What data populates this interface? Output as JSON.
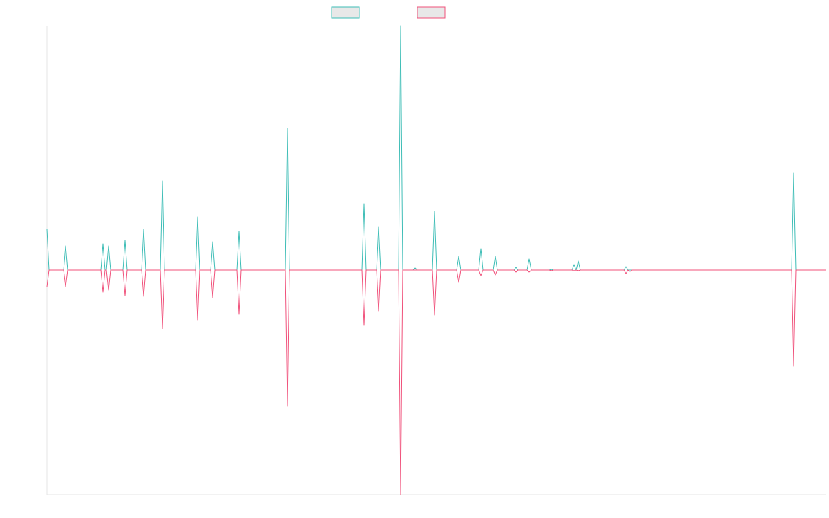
{
  "chart_data": {
    "type": "line",
    "x": [
      0,
      3,
      24,
      27,
      30,
      78,
      81,
      84,
      86,
      89,
      92,
      110,
      113,
      116,
      137,
      140,
      143,
      164,
      167,
      170,
      215,
      218,
      221,
      237,
      240,
      243,
      275,
      278,
      281,
      345,
      348,
      351,
      456,
      459,
      462,
      477,
      480,
      483,
      509,
      512,
      515,
      530,
      533,
      536,
      558,
      561,
      564,
      593,
      596,
      599,
      625,
      628,
      631,
      646,
      649,
      652,
      676,
      679,
      682,
      695,
      698,
      701,
      727,
      730,
      733,
      760,
      763,
      766,
      769,
      772,
      835,
      838,
      841,
      844,
      847,
      1078,
      1081,
      1084,
      1127
    ],
    "series": [
      {
        "color": "#3dbdb6",
        "values": [
          59,
          0,
          0,
          35,
          0,
          0,
          38,
          0,
          0,
          35,
          0,
          0,
          43,
          0,
          0,
          59,
          0,
          0,
          129,
          0,
          0,
          77,
          0,
          0,
          41,
          0,
          0,
          56,
          0,
          0,
          205,
          0,
          0,
          96,
          0,
          0,
          63,
          0,
          0,
          354,
          0,
          0,
          3,
          0,
          0,
          85,
          0,
          0,
          20,
          0,
          0,
          31,
          0,
          0,
          20,
          0,
          0,
          4,
          0,
          0,
          16,
          0,
          0,
          1,
          0,
          0,
          8,
          0,
          13,
          0,
          0,
          5,
          0,
          0,
          0,
          0,
          141,
          0,
          0
        ]
      },
      {
        "color": "#f0507a",
        "values": [
          -24,
          0,
          0,
          -24,
          0,
          0,
          -32,
          0,
          0,
          -29,
          0,
          0,
          -37,
          0,
          0,
          -38,
          0,
          0,
          -85,
          0,
          0,
          -73,
          0,
          0,
          -40,
          0,
          0,
          -64,
          0,
          0,
          -197,
          0,
          0,
          -80,
          0,
          0,
          -60,
          0,
          0,
          -325,
          0,
          0,
          0,
          0,
          0,
          -65,
          0,
          0,
          -18,
          0,
          0,
          -8,
          0,
          0,
          -7,
          0,
          0,
          -3,
          0,
          0,
          -3,
          0,
          0,
          -1,
          0,
          0,
          -1,
          0,
          -1,
          0,
          0,
          -5,
          0,
          -2,
          0,
          0,
          -139,
          0,
          0
        ]
      }
    ],
    "xlim": [
      0,
      1127
    ],
    "ylim": [
      -325,
      354
    ]
  }
}
